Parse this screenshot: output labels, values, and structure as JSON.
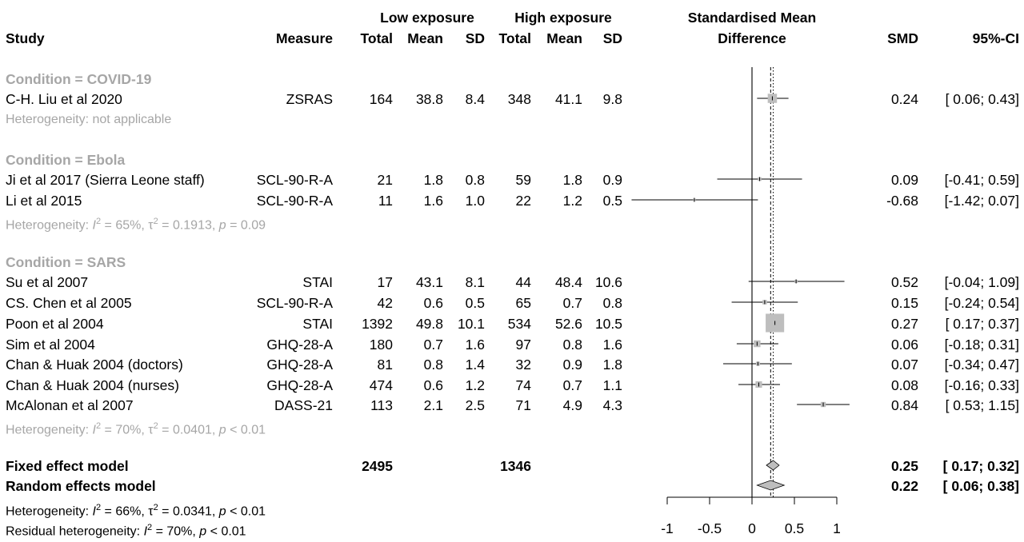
{
  "headers": {
    "study": "Study",
    "measure": "Measure",
    "low_group": "Low exposure",
    "high_group": "High exposure",
    "total": "Total",
    "mean": "Mean",
    "sd": "SD",
    "smd_title_line1": "Standardised Mean",
    "smd_title_line2": "Difference",
    "smd": "SMD",
    "ci": "95%-CI"
  },
  "groups": [
    {
      "label": "Condition = COVID-19",
      "heterogeneity": "Heterogeneity: not applicable",
      "studies": [
        {
          "study": "C-H. Liu et al 2020",
          "measure": "ZSRAS",
          "n1": "164",
          "m1": "38.8",
          "sd1": "8.4",
          "n2": "348",
          "m2": "41.1",
          "sd2": "9.8",
          "smd": "0.24",
          "ci": "[ 0.06; 0.43]"
        }
      ]
    },
    {
      "label": "Condition = Ebola",
      "het": {
        "lead": "Heterogeneity: ",
        "I2": "65%",
        "tau2": "0.1913",
        "p": "0.09",
        "p_op": "="
      },
      "studies": [
        {
          "study": "Ji et al 2017 (Sierra Leone staff)",
          "measure": "SCL-90-R-A",
          "n1": "21",
          "m1": "1.8",
          "sd1": "0.8",
          "n2": "59",
          "m2": "1.8",
          "sd2": "0.9",
          "smd": "0.09",
          "ci": "[-0.41; 0.59]"
        },
        {
          "study": "Li et al 2015",
          "measure": "SCL-90-R-A",
          "n1": "11",
          "m1": "1.6",
          "sd1": "1.0",
          "n2": "22",
          "m2": "1.2",
          "sd2": "0.5",
          "smd": "-0.68",
          "ci": "[-1.42; 0.07]"
        }
      ]
    },
    {
      "label": "Condition = SARS",
      "het": {
        "lead": "Heterogeneity: ",
        "I2": "70%",
        "tau2": "0.0401",
        "p": "0.01",
        "p_op": "<"
      },
      "studies": [
        {
          "study": "Su et al 2007",
          "measure": "STAI",
          "n1": "17",
          "m1": "43.1",
          "sd1": "8.1",
          "n2": "44",
          "m2": "48.4",
          "sd2": "10.6",
          "smd": "0.52",
          "ci": "[-0.04; 1.09]"
        },
        {
          "study": "CS. Chen et al 2005",
          "measure": "SCL-90-R-A",
          "n1": "42",
          "m1": "0.6",
          "sd1": "0.5",
          "n2": "65",
          "m2": "0.7",
          "sd2": "0.8",
          "smd": "0.15",
          "ci": "[-0.24; 0.54]"
        },
        {
          "study": "Poon et al 2004",
          "measure": "STAI",
          "n1": "1392",
          "m1": "49.8",
          "sd1": "10.1",
          "n2": "534",
          "m2": "52.6",
          "sd2": "10.5",
          "smd": "0.27",
          "ci": "[ 0.17; 0.37]"
        },
        {
          "study": "Sim et al 2004",
          "measure": "GHQ-28-A",
          "n1": "180",
          "m1": "0.7",
          "sd1": "1.6",
          "n2": "97",
          "m2": "0.8",
          "sd2": "1.6",
          "smd": "0.06",
          "ci": "[-0.18; 0.31]"
        },
        {
          "study": "Chan & Huak 2004 (doctors)",
          "measure": "GHQ-28-A",
          "n1": "81",
          "m1": "0.8",
          "sd1": "1.4",
          "n2": "32",
          "m2": "0.9",
          "sd2": "1.8",
          "smd": "0.07",
          "ci": "[-0.34; 0.47]"
        },
        {
          "study": "Chan & Huak 2004 (nurses)",
          "measure": "GHQ-28-A",
          "n1": "474",
          "m1": "0.6",
          "sd1": "1.2",
          "n2": "74",
          "m2": "0.7",
          "sd2": "1.1",
          "smd": "0.08",
          "ci": "[-0.16; 0.33]"
        },
        {
          "study": "McAlonan et al 2007",
          "measure": "DASS-21",
          "n1": "113",
          "m1": "2.1",
          "sd1": "2.5",
          "n2": "71",
          "m2": "4.9",
          "sd2": "4.3",
          "smd": "0.84",
          "ci": "[ 0.53; 1.15]"
        }
      ]
    }
  ],
  "fixed": {
    "label": "Fixed effect model",
    "n1": "2495",
    "n2": "1346",
    "smd": "0.25",
    "ci": "[ 0.17; 0.32]"
  },
  "random": {
    "label": "Random effects model",
    "smd": "0.22",
    "ci": "[ 0.06; 0.38]"
  },
  "overall_het": {
    "lead": "Heterogeneity: ",
    "I2": "66%",
    "tau2": "0.0341",
    "p": "0.01",
    "p_op": "<"
  },
  "residual_het": {
    "lead": "Residual heterogeneity: ",
    "I2": "70%",
    "p": "0.01",
    "p_op": "<"
  },
  "colors": {
    "square": "#bebebe",
    "diamond": "#bebebe",
    "muted_text": "#a6a6a6",
    "line": "#000000"
  },
  "chart_data": {
    "type": "forest",
    "x_ticks": [
      -1,
      -0.5,
      0,
      0.5,
      1
    ],
    "xlim": [
      -1,
      1
    ],
    "null_line": 0,
    "fixed_line": 0.25,
    "random_line": 0.22,
    "studies": [
      {
        "name": "C-H. Liu et al 2020",
        "smd": 0.24,
        "lo": 0.06,
        "hi": 0.43,
        "weight": 0.13
      },
      {
        "name": "Ji et al 2017 (Sierra Leone staff)",
        "smd": 0.09,
        "lo": -0.41,
        "hi": 0.59,
        "weight": 0.02
      },
      {
        "name": "Li et al 2015",
        "smd": -0.68,
        "lo": -1.42,
        "hi": 0.07,
        "weight": 0.01
      },
      {
        "name": "Su et al 2007",
        "smd": 0.52,
        "lo": -0.04,
        "hi": 1.09,
        "weight": 0.015
      },
      {
        "name": "CS. Chen et al 2005",
        "smd": 0.15,
        "lo": -0.24,
        "hi": 0.54,
        "weight": 0.03
      },
      {
        "name": "Poon et al 2004",
        "smd": 0.27,
        "lo": 0.17,
        "hi": 0.37,
        "weight": 0.52
      },
      {
        "name": "Sim et al 2004",
        "smd": 0.06,
        "lo": -0.18,
        "hi": 0.31,
        "weight": 0.07
      },
      {
        "name": "Chan & Huak 2004 (doctors)",
        "smd": 0.07,
        "lo": -0.34,
        "hi": 0.47,
        "weight": 0.025
      },
      {
        "name": "Chan & Huak 2004 (nurses)",
        "smd": 0.08,
        "lo": -0.16,
        "hi": 0.33,
        "weight": 0.065
      },
      {
        "name": "McAlonan et al 2007",
        "smd": 0.84,
        "lo": 0.53,
        "hi": 1.15,
        "weight": 0.04
      }
    ],
    "fixed": {
      "smd": 0.25,
      "lo": 0.17,
      "hi": 0.32
    },
    "random": {
      "smd": 0.22,
      "lo": 0.06,
      "hi": 0.38
    }
  }
}
